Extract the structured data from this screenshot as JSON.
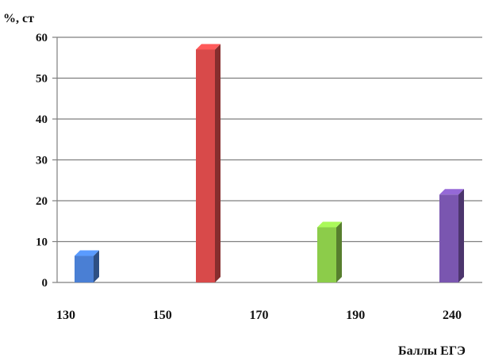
{
  "chart_data": {
    "type": "bar",
    "ylabel": "%, ст",
    "xlabel": "Баллы ЕГЭ",
    "x_tick_labels": [
      "130",
      "150",
      "170",
      "190",
      "240"
    ],
    "ylim": [
      0,
      60
    ],
    "y_ticks": [
      0,
      10,
      20,
      30,
      40,
      50,
      60
    ],
    "grid": true,
    "legend": "none",
    "bars": [
      {
        "value": 6.5,
        "color": "#4a7fd4"
      },
      {
        "value": 57,
        "color": "#d84a4a"
      },
      {
        "value": 13.5,
        "color": "#8ccc4a"
      },
      {
        "value": 21.5,
        "color": "#7a56b0"
      }
    ]
  }
}
